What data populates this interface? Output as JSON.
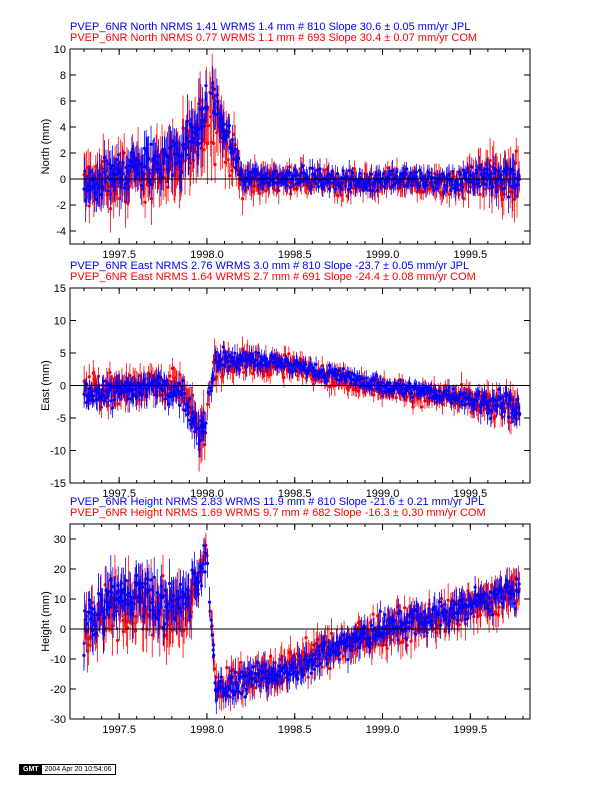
{
  "chart_data": [
    {
      "type": "scatter",
      "title_lines": [
        {
          "text": "PVEP_6NR North NRMS 1.41 WRMS  1.4 mm # 810 Slope   30.6 ±  0.05 mm/yr JPL",
          "color": "#0000ff"
        },
        {
          "text": "PVEP_6NR North NRMS 0.77 WRMS  1.1 mm # 693 Slope   30.4 ±  0.07 mm/yr COM",
          "color": "#ff0000"
        }
      ],
      "ylabel": "North (mm)",
      "xlim": [
        1997.22,
        1999.84
      ],
      "ylim": [
        -5,
        10
      ],
      "xticks": [
        "1997.5",
        "1998.0",
        "1998.5",
        "1999.0",
        "1999.5"
      ],
      "yticks": [
        "-4",
        "-2",
        "0",
        "2",
        "4",
        "6",
        "8",
        "10"
      ],
      "series": [
        {
          "color": "#0000ff",
          "x": [
            1997.3,
            1997.5,
            1997.7,
            1997.85,
            1997.95,
            1998.02,
            1998.2,
            1998.5,
            1998.8,
            1999.1,
            1999.4,
            1999.6,
            1999.78
          ],
          "y": [
            -1.0,
            0.5,
            1.0,
            2.0,
            3.5,
            7.0,
            0.0,
            0.2,
            -0.2,
            0.0,
            -0.3,
            0.2,
            0.0
          ],
          "err": [
            2.0,
            2.0,
            2.2,
            2.5,
            3.0,
            2.0,
            1.2,
            1.0,
            1.0,
            1.0,
            1.0,
            1.5,
            1.5
          ]
        },
        {
          "color": "#ff0000",
          "x": [
            1997.3,
            1997.5,
            1997.7,
            1997.85,
            1997.95,
            1998.02,
            1998.2,
            1998.5,
            1998.8,
            1999.1,
            1999.4,
            1999.6,
            1999.78
          ],
          "y": [
            -0.5,
            0.0,
            0.5,
            1.5,
            3.0,
            6.0,
            -0.2,
            0.0,
            -0.3,
            -0.2,
            -0.5,
            0.0,
            -0.3
          ],
          "err": [
            2.5,
            2.5,
            2.5,
            3.0,
            3.5,
            4.0,
            1.5,
            1.2,
            1.2,
            1.2,
            1.2,
            2.0,
            2.5
          ]
        }
      ]
    },
    {
      "type": "scatter",
      "title_lines": [
        {
          "text": "PVEP_6NR East NRMS 2.76 WRMS  3.0 mm # 810 Slope  -23.7 ±  0.05 mm/yr JPL",
          "color": "#0000ff"
        },
        {
          "text": "PVEP_6NR East NRMS 1.64 WRMS  2.7 mm # 691 Slope  -24.4 ±  0.08 mm/yr COM",
          "color": "#ff0000"
        }
      ],
      "ylabel": "East (mm)",
      "xlim": [
        1997.22,
        1999.84
      ],
      "ylim": [
        -15,
        15
      ],
      "xticks": [
        "1997.5",
        "1998.0",
        "1998.5",
        "1999.0",
        "1999.5"
      ],
      "yticks": [
        "-15",
        "-10",
        "-5",
        "0",
        "5",
        "10",
        "15"
      ],
      "series": [
        {
          "color": "#0000ff",
          "x": [
            1997.3,
            1997.5,
            1997.7,
            1997.85,
            1997.97,
            1998.05,
            1998.25,
            1998.5,
            1998.75,
            1999.0,
            1999.25,
            1999.5,
            1999.7,
            1999.78
          ],
          "y": [
            -1.5,
            -1.0,
            0.0,
            -1.0,
            -7.0,
            4.0,
            4.0,
            3.0,
            1.5,
            0.0,
            -1.0,
            -2.0,
            -3.0,
            -4.0
          ],
          "err": [
            2.5,
            2.5,
            2.5,
            2.5,
            3.5,
            2.0,
            2.0,
            1.5,
            1.5,
            1.5,
            1.5,
            2.0,
            2.5,
            2.5
          ]
        },
        {
          "color": "#ff0000",
          "x": [
            1997.3,
            1997.5,
            1997.7,
            1997.85,
            1997.97,
            1998.05,
            1998.25,
            1998.5,
            1998.75,
            1999.0,
            1999.25,
            1999.5,
            1999.7,
            1999.78
          ],
          "y": [
            -1.0,
            -0.5,
            0.5,
            -0.5,
            -8.0,
            3.5,
            3.5,
            3.0,
            1.0,
            -0.5,
            -1.5,
            -2.0,
            -3.5,
            -3.5
          ],
          "err": [
            3.0,
            3.0,
            3.0,
            3.0,
            4.5,
            3.0,
            2.5,
            2.0,
            2.0,
            2.0,
            2.0,
            2.5,
            3.0,
            3.0
          ]
        }
      ]
    },
    {
      "type": "scatter",
      "title_lines": [
        {
          "text": "PVEP_6NR Height NRMS 2.83 WRMS 11.9 mm # 810 Slope  -21.6 ±  0.21 mm/yr JPL",
          "color": "#0000ff"
        },
        {
          "text": "PVEP_6NR Height NRMS 1.69 WRMS  9.7 mm # 682 Slope  -16.3 ±  0.30 mm/yr COM",
          "color": "#ff0000"
        }
      ],
      "ylabel": "Height (mm)",
      "xlim": [
        1997.22,
        1999.84
      ],
      "ylim": [
        -30,
        35
      ],
      "xticks": [
        "1997.5",
        "1998.0",
        "1998.5",
        "1999.0",
        "1999.5"
      ],
      "yticks": [
        "-30",
        "-20",
        "-10",
        "0",
        "10",
        "20",
        "30"
      ],
      "series": [
        {
          "color": "#0000ff",
          "x": [
            1997.3,
            1997.45,
            1997.6,
            1997.75,
            1997.9,
            1998.0,
            1998.05,
            1998.2,
            1998.4,
            1998.6,
            1998.8,
            1999.0,
            1999.2,
            1999.4,
            1999.6,
            1999.78
          ],
          "y": [
            0.0,
            10.0,
            12.0,
            8.0,
            10.0,
            25.0,
            -20.0,
            -18.0,
            -15.0,
            -10.0,
            -5.0,
            0.0,
            3.0,
            6.0,
            10.0,
            12.0
          ],
          "err": [
            8.0,
            10.0,
            10.0,
            10.0,
            10.0,
            6.0,
            6.0,
            6.0,
            6.0,
            6.0,
            6.0,
            6.0,
            6.0,
            6.0,
            6.0,
            6.0
          ]
        },
        {
          "color": "#ff0000",
          "x": [
            1997.3,
            1997.45,
            1997.6,
            1997.75,
            1997.9,
            1998.0,
            1998.05,
            1998.2,
            1998.4,
            1998.6,
            1998.8,
            1999.0,
            1999.2,
            1999.4,
            1999.6,
            1999.78
          ],
          "y": [
            -2.0,
            6.0,
            8.0,
            5.0,
            6.0,
            27.0,
            -20.0,
            -17.0,
            -14.0,
            -9.0,
            -5.0,
            -1.0,
            2.0,
            5.0,
            8.0,
            14.0
          ],
          "err": [
            10.0,
            12.0,
            12.0,
            12.0,
            12.0,
            5.0,
            7.0,
            7.0,
            7.0,
            7.0,
            7.0,
            7.0,
            7.0,
            7.0,
            8.0,
            8.0
          ]
        }
      ]
    }
  ],
  "footer": {
    "logo": "GMT",
    "timestamp": "2004 Apr 20 10:54:06"
  }
}
